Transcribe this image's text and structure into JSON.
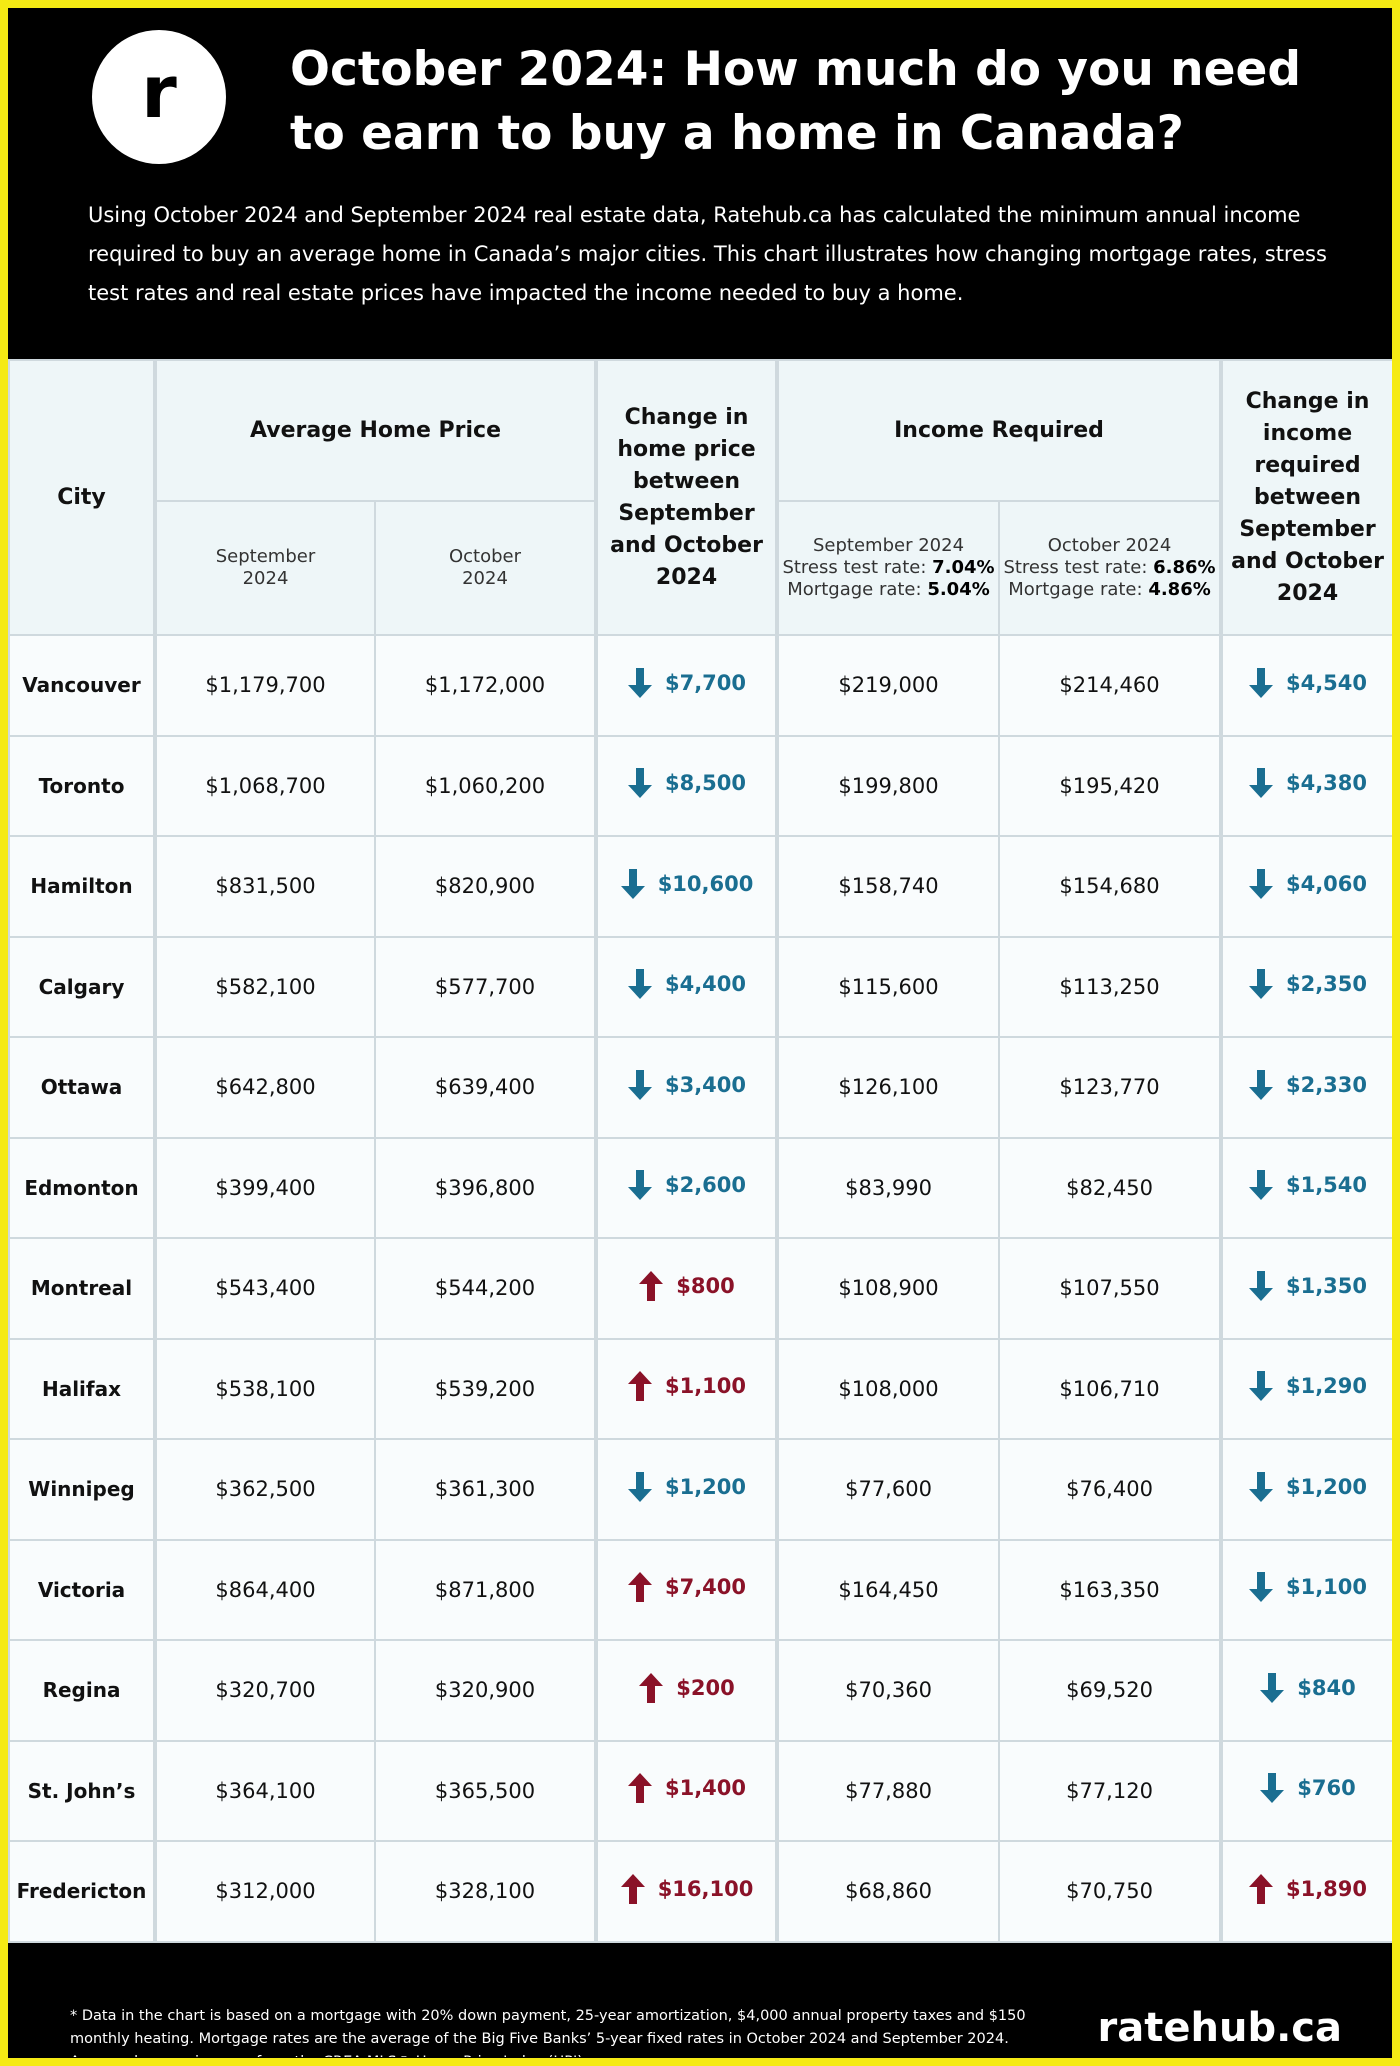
{
  "header": {
    "logo": "r",
    "title_line1": "October 2024: How much do you need",
    "title_line2": "to earn to buy a home in Canada?",
    "description": "Using October 2024 and September 2024 real estate data, Ratehub.ca has calculated the minimum annual income required to buy an average home in Canada’s major cities. This chart illustrates how changing mortgage rates, stress test rates and real estate prices have impacted the income needed to buy a home."
  },
  "table": {
    "headers": {
      "city": "City",
      "avg_price": "Average Home Price",
      "avg_sep": "September 2024",
      "avg_oct": "October 2024",
      "price_change": "Change in home price between September and October 2024",
      "income": "Income Required",
      "inc_sep": {
        "month": "September 2024",
        "stress_label": "Stress test rate:",
        "stress": "7.04%",
        "mortgage_label": "Mortgage rate:",
        "mortgage": "5.04%"
      },
      "inc_oct": {
        "month": "October 2024",
        "stress_label": "Stress test rate:",
        "stress": "6.86%",
        "mortgage_label": "Mortgage rate:",
        "mortgage": "4.86%"
      },
      "income_change": "Change in income required between September and October 2024"
    },
    "rows": [
      {
        "city": "Vancouver",
        "price_sep": "$1,179,700",
        "price_oct": "$1,172,000",
        "price_dir": "down",
        "price_change": "$7,700",
        "inc_sep": "$219,000",
        "inc_oct": "$214,460",
        "inc_dir": "down",
        "inc_change": "$4,540"
      },
      {
        "city": "Toronto",
        "price_sep": "$1,068,700",
        "price_oct": "$1,060,200",
        "price_dir": "down",
        "price_change": "$8,500",
        "inc_sep": "$199,800",
        "inc_oct": "$195,420",
        "inc_dir": "down",
        "inc_change": "$4,380"
      },
      {
        "city": "Hamilton",
        "price_sep": "$831,500",
        "price_oct": "$820,900",
        "price_dir": "down",
        "price_change": "$10,600",
        "inc_sep": "$158,740",
        "inc_oct": "$154,680",
        "inc_dir": "down",
        "inc_change": "$4,060"
      },
      {
        "city": "Calgary",
        "price_sep": "$582,100",
        "price_oct": "$577,700",
        "price_dir": "down",
        "price_change": "$4,400",
        "inc_sep": "$115,600",
        "inc_oct": "$113,250",
        "inc_dir": "down",
        "inc_change": "$2,350"
      },
      {
        "city": "Ottawa",
        "price_sep": "$642,800",
        "price_oct": "$639,400",
        "price_dir": "down",
        "price_change": "$3,400",
        "inc_sep": "$126,100",
        "inc_oct": "$123,770",
        "inc_dir": "down",
        "inc_change": "$2,330"
      },
      {
        "city": "Edmonton",
        "price_sep": "$399,400",
        "price_oct": "$396,800",
        "price_dir": "down",
        "price_change": "$2,600",
        "inc_sep": "$83,990",
        "inc_oct": "$82,450",
        "inc_dir": "down",
        "inc_change": "$1,540"
      },
      {
        "city": "Montreal",
        "price_sep": "$543,400",
        "price_oct": "$544,200",
        "price_dir": "up",
        "price_change": "$800",
        "inc_sep": "$108,900",
        "inc_oct": "$107,550",
        "inc_dir": "down",
        "inc_change": "$1,350"
      },
      {
        "city": "Halifax",
        "price_sep": "$538,100",
        "price_oct": "$539,200",
        "price_dir": "up",
        "price_change": "$1,100",
        "inc_sep": "$108,000",
        "inc_oct": "$106,710",
        "inc_dir": "down",
        "inc_change": "$1,290"
      },
      {
        "city": "Winnipeg",
        "price_sep": "$362,500",
        "price_oct": "$361,300",
        "price_dir": "down",
        "price_change": "$1,200",
        "inc_sep": "$77,600",
        "inc_oct": "$76,400",
        "inc_dir": "down",
        "inc_change": "$1,200"
      },
      {
        "city": "Victoria",
        "price_sep": "$864,400",
        "price_oct": "$871,800",
        "price_dir": "up",
        "price_change": "$7,400",
        "inc_sep": "$164,450",
        "inc_oct": "$163,350",
        "inc_dir": "down",
        "inc_change": "$1,100"
      },
      {
        "city": "Regina",
        "price_sep": "$320,700",
        "price_oct": "$320,900",
        "price_dir": "up",
        "price_change": "$200",
        "inc_sep": "$70,360",
        "inc_oct": "$69,520",
        "inc_dir": "down",
        "inc_change": "$840"
      },
      {
        "city": "St. John’s",
        "price_sep": "$364,100",
        "price_oct": "$365,500",
        "price_dir": "up",
        "price_change": "$1,400",
        "inc_sep": "$77,880",
        "inc_oct": "$77,120",
        "inc_dir": "down",
        "inc_change": "$760"
      },
      {
        "city": "Fredericton",
        "price_sep": "$312,000",
        "price_oct": "$328,100",
        "price_dir": "up",
        "price_change": "$16,100",
        "inc_sep": "$68,860",
        "inc_oct": "$70,750",
        "inc_dir": "up",
        "inc_change": "$1,890"
      }
    ]
  },
  "footer": {
    "note": "* Data in the chart is based on a mortgage with 20% down payment, 25-year amortization, $4,000 annual property taxes and $150 monthly heating. Mortgage rates are the average of the Big Five Banks’ 5-year fixed rates in October 2024 and September 2024. Average home prices are from the CREA MLS® Home Price Index (HPI).",
    "brand": "ratehub.ca"
  }
}
